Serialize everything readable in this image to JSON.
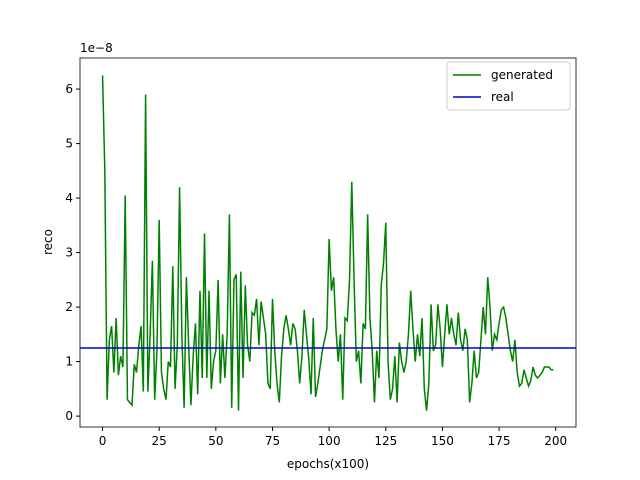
{
  "chart_data": {
    "type": "line",
    "y_offset_label": "1e−8",
    "xlabel": "epochs(x100)",
    "ylabel": "reco",
    "xlim": [
      -9.95,
      208.95
    ],
    "xticks": [
      0,
      25,
      50,
      75,
      100,
      125,
      150,
      175,
      200
    ],
    "ylim": [
      -0.2,
      6.57
    ],
    "yticks": [
      0,
      1,
      2,
      3,
      4,
      5,
      6
    ],
    "legend": "upper right",
    "x": [
      0,
      1,
      2,
      3,
      4,
      5,
      6,
      7,
      8,
      9,
      10,
      11,
      12,
      13,
      14,
      15,
      16,
      17,
      18,
      19,
      20,
      21,
      22,
      23,
      24,
      25,
      26,
      27,
      28,
      29,
      30,
      31,
      32,
      33,
      34,
      35,
      36,
      37,
      38,
      39,
      40,
      41,
      42,
      43,
      44,
      45,
      46,
      47,
      48,
      49,
      50,
      51,
      52,
      53,
      54,
      55,
      56,
      57,
      58,
      59,
      60,
      61,
      62,
      63,
      64,
      65,
      66,
      67,
      68,
      69,
      70,
      71,
      72,
      73,
      74,
      75,
      76,
      77,
      78,
      79,
      80,
      81,
      82,
      83,
      84,
      85,
      86,
      87,
      88,
      89,
      90,
      91,
      92,
      93,
      94,
      95,
      96,
      97,
      98,
      99,
      100,
      101,
      102,
      103,
      104,
      105,
      106,
      107,
      108,
      109,
      110,
      111,
      112,
      113,
      114,
      115,
      116,
      117,
      118,
      119,
      120,
      121,
      122,
      123,
      124,
      125,
      126,
      127,
      128,
      129,
      130,
      131,
      132,
      133,
      134,
      135,
      136,
      137,
      138,
      139,
      140,
      141,
      142,
      143,
      144,
      145,
      146,
      147,
      148,
      149,
      150,
      151,
      152,
      153,
      154,
      155,
      156,
      157,
      158,
      159,
      160,
      161,
      162,
      163,
      164,
      165,
      166,
      167,
      168,
      169,
      170,
      171,
      172,
      173,
      174,
      175,
      176,
      177,
      178,
      179,
      180,
      181,
      182,
      183,
      184,
      185,
      186,
      187,
      188,
      189,
      190,
      191,
      192,
      193,
      194,
      195,
      196,
      197,
      198,
      199
    ],
    "series": [
      {
        "name": "generated",
        "color": "#008000",
        "values": [
          6.25,
          4.5,
          0.3,
          1.4,
          1.65,
          0.8,
          1.8,
          0.75,
          1.1,
          0.9,
          4.05,
          0.3,
          0.25,
          0.2,
          0.95,
          0.8,
          1.3,
          1.65,
          0.45,
          5.9,
          0.45,
          1.5,
          2.85,
          0.3,
          1.2,
          3.6,
          0.8,
          0.5,
          0.3,
          1.0,
          0.9,
          2.75,
          0.5,
          1.3,
          4.2,
          1.5,
          0.15,
          2.55,
          1.3,
          0.2,
          1.1,
          1.7,
          0.4,
          2.3,
          0.7,
          3.35,
          0.7,
          2.3,
          0.5,
          1.0,
          1.2,
          2.5,
          0.6,
          1.5,
          0.7,
          1.5,
          3.7,
          0.15,
          2.5,
          2.6,
          0.1,
          2.65,
          0.7,
          2.4,
          1.3,
          1.0,
          1.9,
          1.85,
          2.15,
          1.3,
          2.1,
          1.8,
          1.5,
          0.6,
          0.5,
          2.15,
          1.2,
          0.6,
          0.25,
          1.1,
          1.6,
          1.85,
          1.6,
          1.3,
          1.7,
          1.6,
          1.2,
          0.6,
          1.1,
          1.95,
          1.5,
          1.05,
          0.4,
          1.8,
          0.35,
          0.6,
          0.9,
          1.2,
          1.4,
          1.6,
          3.25,
          2.3,
          2.55,
          1.6,
          1.0,
          1.5,
          0.3,
          1.8,
          1.75,
          2.5,
          4.3,
          2.5,
          1.0,
          1.2,
          0.6,
          1.7,
          1.6,
          3.7,
          1.8,
          1.2,
          0.25,
          1.2,
          0.7,
          2.4,
          2.8,
          3.55,
          1.0,
          0.3,
          0.5,
          1.1,
          0.25,
          1.35,
          1.0,
          0.8,
          1.0,
          1.5,
          2.3,
          1.6,
          1.0,
          1.5,
          1.1,
          1.8,
          0.5,
          0.1,
          0.6,
          2.05,
          1.2,
          1.3,
          2.05,
          1.6,
          0.9,
          1.5,
          2.05,
          1.5,
          1.8,
          1.5,
          1.3,
          1.9,
          1.4,
          1.2,
          1.6,
          1.4,
          0.25,
          0.6,
          1.2,
          0.7,
          0.8,
          1.4,
          2.0,
          1.5,
          2.55,
          2.0,
          1.2,
          1.5,
          1.4,
          1.7,
          1.95,
          2.0,
          1.8,
          1.5,
          1.2,
          1.0,
          1.4,
          0.8,
          0.55,
          0.6,
          0.85,
          0.7,
          0.55,
          0.65,
          0.9,
          0.75,
          0.7,
          0.75,
          0.8,
          0.9,
          0.9,
          0.9,
          0.85,
          0.85
        ]
      },
      {
        "name": "real",
        "color": "#0000cc",
        "kind": "hline",
        "value": 1.25
      }
    ]
  }
}
